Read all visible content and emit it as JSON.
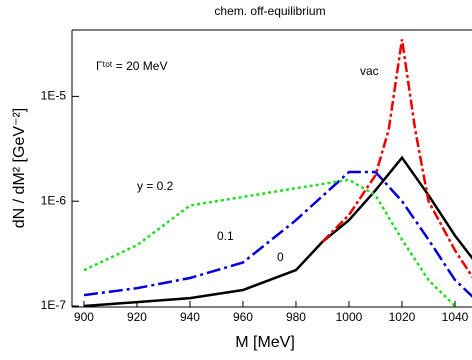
{
  "chart_data": {
    "type": "line",
    "title": "chem. off-equilibrium",
    "x_label": "M [MeV]",
    "y_label": "dN / dM² [GeV⁻²]",
    "annotation": "Γᵗᵒᵗ = 20 MeV",
    "ylog": true,
    "xlim": [
      895,
      1050
    ],
    "ylim": [
      1e-07,
      4.3e-05
    ],
    "xticks": [
      900,
      920,
      940,
      960,
      980,
      1000,
      1020,
      1040
    ],
    "yticks": [
      {
        "value": 1e-07,
        "label": "1E-7"
      },
      {
        "value": 1e-06,
        "label": "1E-6"
      },
      {
        "value": 1e-05,
        "label": "1E-5"
      }
    ],
    "series": [
      {
        "name": "0",
        "color": "#000000",
        "x": [
          900,
          920,
          940,
          960,
          980,
          990,
          1000,
          1010,
          1020,
          1030,
          1040,
          1050
        ],
        "values": [
          1e-07,
          1.09e-07,
          1.19e-07,
          1.42e-07,
          2.2e-07,
          4.1e-07,
          6.6e-07,
          1.27e-06,
          2.6e-06,
          1.14e-06,
          4.7e-07,
          2.2e-07
        ]
      },
      {
        "name": "0.1",
        "color": "#0000dd",
        "x": [
          900,
          920,
          940,
          960,
          980,
          1000,
          1010,
          1020,
          1030,
          1040,
          1050
        ],
        "values": [
          1.27e-07,
          1.48e-07,
          1.85e-07,
          2.6e-07,
          6.6e-07,
          1.9e-06,
          1.9e-06,
          1e-06,
          4.3e-07,
          1.77e-07,
          1.02e-07
        ]
      },
      {
        "name": "y = 0.2",
        "color": "#22dd22",
        "x": [
          900,
          920,
          940,
          960,
          980,
          1000,
          1010,
          1020,
          1030,
          1040
        ],
        "values": [
          2.2e-07,
          3.8e-07,
          9.1e-07,
          1.1e-06,
          1.33e-06,
          1.6e-06,
          1.14e-06,
          4.3e-07,
          1.77e-07,
          1e-07
        ]
      },
      {
        "name": "vac",
        "color": "#ee0000",
        "x": [
          990,
          1000,
          1010,
          1015,
          1020,
          1025,
          1030,
          1040,
          1050
        ],
        "values": [
          4.1e-07,
          7.4e-07,
          1.77e-06,
          4.8e-06,
          3.5e-05,
          4.8e-06,
          1e-06,
          3.4e-07,
          1.4e-07
        ]
      }
    ]
  }
}
